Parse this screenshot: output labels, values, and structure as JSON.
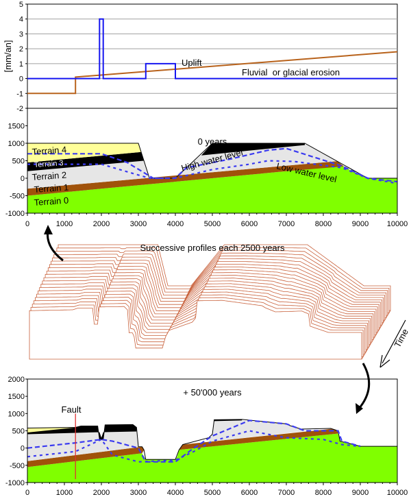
{
  "chart_data": [
    {
      "type": "line",
      "ylabel": "[mm/an]",
      "ylim": [
        -2,
        5
      ],
      "yticks": [
        "5",
        "4",
        "3",
        "2",
        "1",
        "0",
        "-1",
        "-2"
      ],
      "xlim": [
        0,
        10000
      ],
      "grid": true,
      "series": [
        {
          "name": "Uplift",
          "color": "#b8621b",
          "points": [
            [
              0,
              -1
            ],
            [
              1300,
              -1
            ],
            [
              1300,
              0.1
            ],
            [
              10000,
              1.8
            ]
          ]
        },
        {
          "name": "Fluvial  or glacial erosion",
          "color": "#1515f0",
          "points": [
            [
              0,
              0
            ],
            [
              1950,
              0
            ],
            [
              1950,
              4
            ],
            [
              2050,
              4
            ],
            [
              2050,
              0
            ],
            [
              3200,
              0
            ],
            [
              3200,
              1
            ],
            [
              4000,
              1
            ],
            [
              4000,
              0
            ],
            [
              10000,
              0
            ]
          ]
        }
      ]
    },
    {
      "type": "area",
      "title": "0 years",
      "ylim": [
        -1000,
        2000
      ],
      "xlim": [
        0,
        10000
      ],
      "yticks": [
        "1500",
        "1000",
        "500",
        "0",
        "-500",
        "-1000"
      ],
      "xticks": [
        "0",
        "1000",
        "2000",
        "3000",
        "4000",
        "5000",
        "6000",
        "7000",
        "8000",
        "9000",
        "10000"
      ],
      "layers": [
        {
          "name": "Terrain 0",
          "color": "#80ff00",
          "points": [
            [
              0,
              -500
            ],
            [
              7000,
              200
            ],
            [
              8500,
              350
            ],
            [
              9200,
              0
            ],
            [
              10000,
              0
            ],
            [
              10000,
              -1000
            ],
            [
              0,
              -1000
            ]
          ]
        },
        {
          "name": "Terrain 1",
          "color": "#a0520a",
          "points": [
            [
              0,
              -300
            ],
            [
              8373,
              488
            ],
            [
              8560,
              340
            ],
            [
              7000,
              200
            ],
            [
              0,
              -500
            ]
          ]
        },
        {
          "name": "Terrain 2",
          "color": "#e6e6e6",
          "points": [
            [
              0,
              200
            ],
            [
              3150,
              500
            ],
            [
              3300,
              10
            ],
            [
              0,
              -300
            ]
          ]
        },
        {
          "name": "Terrain 2",
          "color": "#e6e6e6",
          "points": [
            [
              4000,
              76
            ],
            [
              4700,
              650
            ],
            [
              7500,
              950
            ],
            [
              7500,
              1000
            ],
            [
              8373,
              488
            ]
          ]
        },
        {
          "name": "Terrain 3",
          "color": "#000000",
          "points": [
            [
              0,
              450
            ],
            [
              3075,
              750
            ],
            [
              3150,
              500
            ],
            [
              0,
              200
            ]
          ]
        },
        {
          "name": "Terrain 3",
          "color": "#000000",
          "points": [
            [
              4700,
              650
            ],
            [
              5000,
              1000
            ],
            [
              7500,
              1000
            ],
            [
              7500,
              950
            ]
          ]
        },
        {
          "name": "Terrain 4",
          "color": "#ffff99",
          "points": [
            [
              0,
              1000
            ],
            [
              3000,
              1000
            ],
            [
              3075,
              750
            ],
            [
              0,
              450
            ]
          ]
        }
      ],
      "surface": [
        [
          0,
          1000
        ],
        [
          3000,
          1000
        ],
        [
          3300,
          0
        ],
        [
          4000,
          0
        ],
        [
          5000,
          1000
        ],
        [
          7500,
          1000
        ],
        [
          9200,
          0
        ],
        [
          10000,
          0
        ]
      ],
      "water": [
        {
          "name": "High water level",
          "points": [
            [
              0,
              700
            ],
            [
              2000,
              700
            ],
            [
              2700,
              450
            ],
            [
              3400,
              0
            ],
            [
              4000,
              0
            ],
            [
              4300,
              300
            ],
            [
              5500,
              550
            ],
            [
              6500,
              800
            ],
            [
              7000,
              850
            ],
            [
              7600,
              650
            ],
            [
              8500,
              350
            ],
            [
              9200,
              0
            ],
            [
              10000,
              -100
            ]
          ]
        },
        {
          "name": "Low water level",
          "points": [
            [
              0,
              400
            ],
            [
              2000,
              400
            ],
            [
              3300,
              0
            ],
            [
              4000,
              0
            ],
            [
              5000,
              250
            ],
            [
              6000,
              400
            ],
            [
              6500,
              500
            ],
            [
              7200,
              480
            ],
            [
              8500,
              300
            ],
            [
              9200,
              0
            ],
            [
              10000,
              -150
            ]
          ]
        }
      ],
      "labels": {
        "terrain4": "Terrain 4",
        "terrain3": "Terrain 3",
        "terrain2": "Terrain 2",
        "terrain1": "Terrain 1",
        "terrain0": "Terrain 0",
        "high": "High water level",
        "low": "Low water level"
      }
    },
    {
      "type": "area",
      "title": "+ 50'000 years",
      "ylim": [
        -1000,
        2000
      ],
      "xlim": [
        0,
        10000
      ],
      "yticks": [
        "2000",
        "1500",
        "1000",
        "500",
        "0",
        "-500",
        "-1000"
      ],
      "xticks": [
        "0",
        "1000",
        "2000",
        "3000",
        "4000",
        "5000",
        "6000",
        "7000",
        "8000",
        "9000",
        "10000"
      ],
      "fault_label": "Fault",
      "fault_x": 1300,
      "layers": [
        {
          "name": "Terrain 0",
          "color": "#80ff00",
          "points": [
            [
              0,
              -550
            ],
            [
              3100,
              -150
            ],
            [
              3200,
              -330
            ],
            [
              4000,
              -330
            ],
            [
              4050,
              -250
            ],
            [
              4100,
              -50
            ],
            [
              8400,
              420
            ],
            [
              8450,
              200
            ],
            [
              9000,
              50
            ],
            [
              10000,
              50
            ],
            [
              10000,
              -1000
            ],
            [
              0,
              -1000
            ]
          ]
        },
        {
          "name": "Terrain 1",
          "color": "#a0520a",
          "points": [
            [
              0,
              -380
            ],
            [
              3100,
              40
            ],
            [
              3150,
              -60
            ],
            [
              3100,
              -150
            ],
            [
              0,
              -550
            ]
          ]
        },
        {
          "name": "Terrain 1",
          "color": "#a0520a",
          "points": [
            [
              4100,
              -50
            ],
            [
              4200,
              100
            ],
            [
              8250,
              560
            ],
            [
              8400,
              500
            ],
            [
              8400,
              420
            ]
          ]
        },
        {
          "name": "Terrain 2",
          "color": "#e6e6e6",
          "points": [
            [
              0,
              400
            ],
            [
              1950,
              460
            ],
            [
              1950,
              250
            ],
            [
              2050,
              250
            ],
            [
              2050,
              460
            ],
            [
              2950,
              480
            ],
            [
              3000,
              40
            ],
            [
              3100,
              40
            ],
            [
              0,
              -380
            ]
          ]
        },
        {
          "name": "Terrain 2",
          "color": "#e6e6e6",
          "points": [
            [
              4900,
              300
            ],
            [
              5000,
              400
            ],
            [
              5050,
              780
            ],
            [
              5800,
              800
            ],
            [
              7000,
              700
            ],
            [
              7100,
              650
            ],
            [
              7400,
              550
            ],
            [
              7600,
              500
            ],
            [
              4900,
              180
            ]
          ]
        },
        {
          "name": "Terrain 3",
          "color": "#000000",
          "points": [
            [
              0,
              560
            ],
            [
              1300,
              600
            ],
            [
              1450,
              640
            ],
            [
              1900,
              640
            ],
            [
              1950,
              250
            ],
            [
              2050,
              250
            ],
            [
              2100,
              670
            ],
            [
              2850,
              680
            ],
            [
              2950,
              600
            ],
            [
              2950,
              480
            ],
            [
              2050,
              460
            ],
            [
              2000,
              300
            ],
            [
              1950,
              460
            ],
            [
              0,
              400
            ]
          ]
        },
        {
          "name": "Terrain 3",
          "color": "#000000",
          "points": [
            [
              5050,
              780
            ],
            [
              5050,
              820
            ],
            [
              5800,
              830
            ],
            [
              5800,
              800
            ]
          ]
        },
        {
          "name": "Terrain 4",
          "color": "#ffff99",
          "points": [
            [
              0,
              570
            ],
            [
              1300,
              595
            ],
            [
              0,
              450
            ]
          ]
        }
      ],
      "surface": [
        [
          0,
          580
        ],
        [
          1300,
          600
        ],
        [
          1450,
          640
        ],
        [
          1900,
          640
        ],
        [
          1950,
          250
        ],
        [
          2050,
          250
        ],
        [
          2100,
          670
        ],
        [
          2850,
          680
        ],
        [
          2950,
          600
        ],
        [
          3000,
          40
        ],
        [
          3100,
          40
        ],
        [
          3150,
          -50
        ],
        [
          3200,
          -330
        ],
        [
          4000,
          -330
        ],
        [
          4100,
          -50
        ],
        [
          4200,
          100
        ],
        [
          4900,
          300
        ],
        [
          5000,
          400
        ],
        [
          5050,
          820
        ],
        [
          5800,
          830
        ],
        [
          7000,
          700
        ],
        [
          7100,
          650
        ],
        [
          7400,
          550
        ],
        [
          8200,
          570
        ],
        [
          8400,
          500
        ],
        [
          8450,
          200
        ],
        [
          9000,
          50
        ],
        [
          10000,
          50
        ]
      ],
      "water": [
        {
          "name": "High water level",
          "points": [
            [
              0,
              0
            ],
            [
              1300,
              150
            ],
            [
              2000,
              250
            ],
            [
              2300,
              200
            ],
            [
              3000,
              0
            ],
            [
              3200,
              -400
            ],
            [
              4000,
              -400
            ],
            [
              4500,
              0
            ],
            [
              5000,
              350
            ],
            [
              6000,
              800
            ],
            [
              7000,
              700
            ],
            [
              7500,
              500
            ],
            [
              8400,
              500
            ],
            [
              8500,
              200
            ],
            [
              9000,
              50
            ]
          ]
        },
        {
          "name": "Low water level",
          "points": [
            [
              0,
              -250
            ],
            [
              1300,
              -100
            ],
            [
              2000,
              250
            ],
            [
              2300,
              -200
            ],
            [
              3000,
              -400
            ],
            [
              4000,
              -350
            ],
            [
              4500,
              -100
            ],
            [
              5000,
              200
            ],
            [
              6000,
              500
            ],
            [
              7000,
              300
            ],
            [
              8000,
              250
            ],
            [
              8500,
              100
            ],
            [
              9000,
              50
            ]
          ]
        }
      ]
    }
  ],
  "annotations": {
    "uplift": "Uplift",
    "erosion": "Fluvial  or glacial erosion",
    "successive": "Successive profiles each 2500 years",
    "time": "Time",
    "profile_count": 21
  },
  "colors": {
    "profile_line": "#c8603a",
    "water": "#3a3af0",
    "fault": "#e03030",
    "grid": "#a0a0a0"
  }
}
